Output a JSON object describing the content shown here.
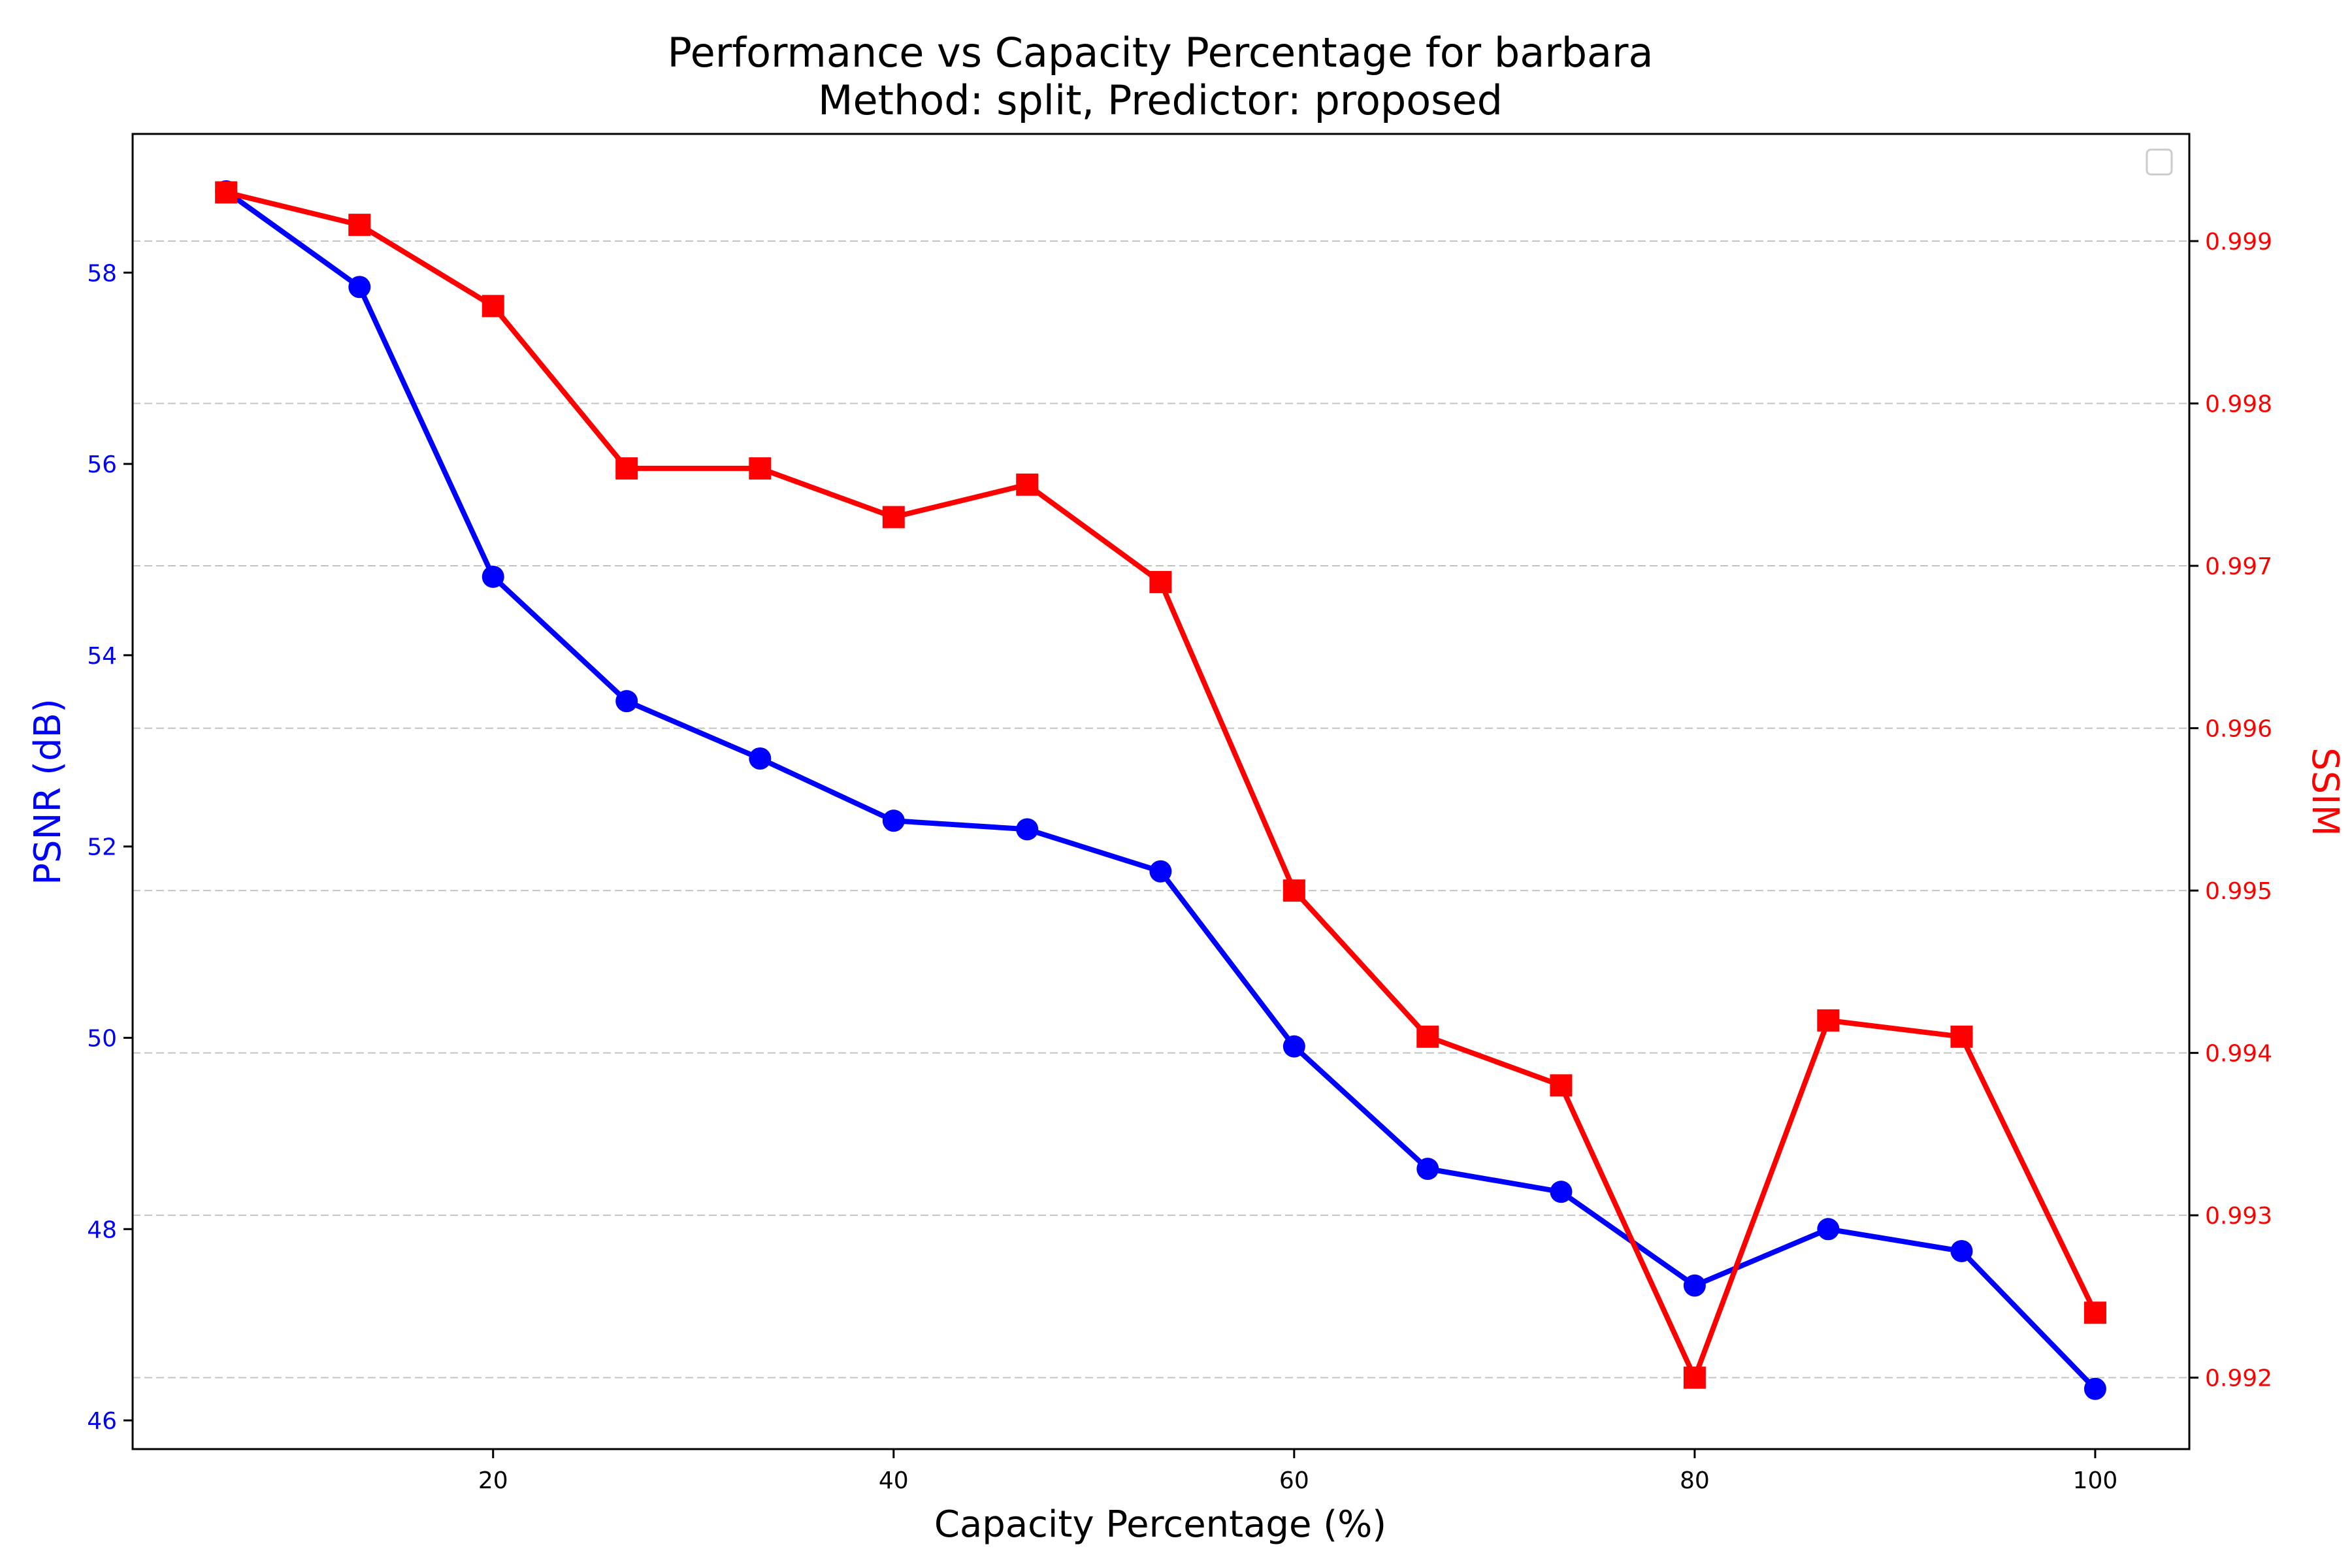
{
  "chart_data": {
    "type": "line",
    "title": "Performance vs Capacity Percentage for barbara",
    "subtitle": "Method: split, Predictor: proposed",
    "xlabel": "Capacity Percentage (%)",
    "ylabel_left": "PSNR (dB)",
    "ylabel_right": "SSIM",
    "xlim": [
      2.0,
      104.7
    ],
    "ylim_left": [
      45.7,
      59.45
    ],
    "ylim_right": [
      0.99156,
      0.99966
    ],
    "x_ticks": [
      20,
      40,
      60,
      80,
      100
    ],
    "y_left_ticks": [
      46,
      48,
      50,
      52,
      54,
      56,
      58
    ],
    "y_right_ticks": [
      0.992,
      0.993,
      0.994,
      0.995,
      0.996,
      0.997,
      0.998,
      0.999
    ],
    "grid": "horizontal-dashed",
    "legend": "top-right (empty)",
    "x": [
      6.67,
      13.33,
      20.0,
      26.67,
      33.33,
      40.0,
      46.67,
      53.33,
      60.0,
      66.67,
      73.33,
      80.0,
      86.67,
      93.33,
      100.0
    ],
    "series": [
      {
        "axis": "left",
        "color": "#0000ff",
        "marker": "circle",
        "values": [
          58.85,
          57.85,
          54.82,
          53.52,
          52.92,
          52.27,
          52.18,
          51.74,
          49.91,
          48.63,
          48.39,
          47.41,
          48.0,
          47.77,
          46.33
        ]
      },
      {
        "axis": "right",
        "color": "#ff0000",
        "marker": "square",
        "values": [
          0.9993,
          0.9991,
          0.9986,
          0.9976,
          0.9976,
          0.9973,
          0.9975,
          0.9969,
          0.995,
          0.9941,
          0.9938,
          0.992,
          0.9942,
          0.9941,
          0.9924
        ]
      }
    ]
  }
}
